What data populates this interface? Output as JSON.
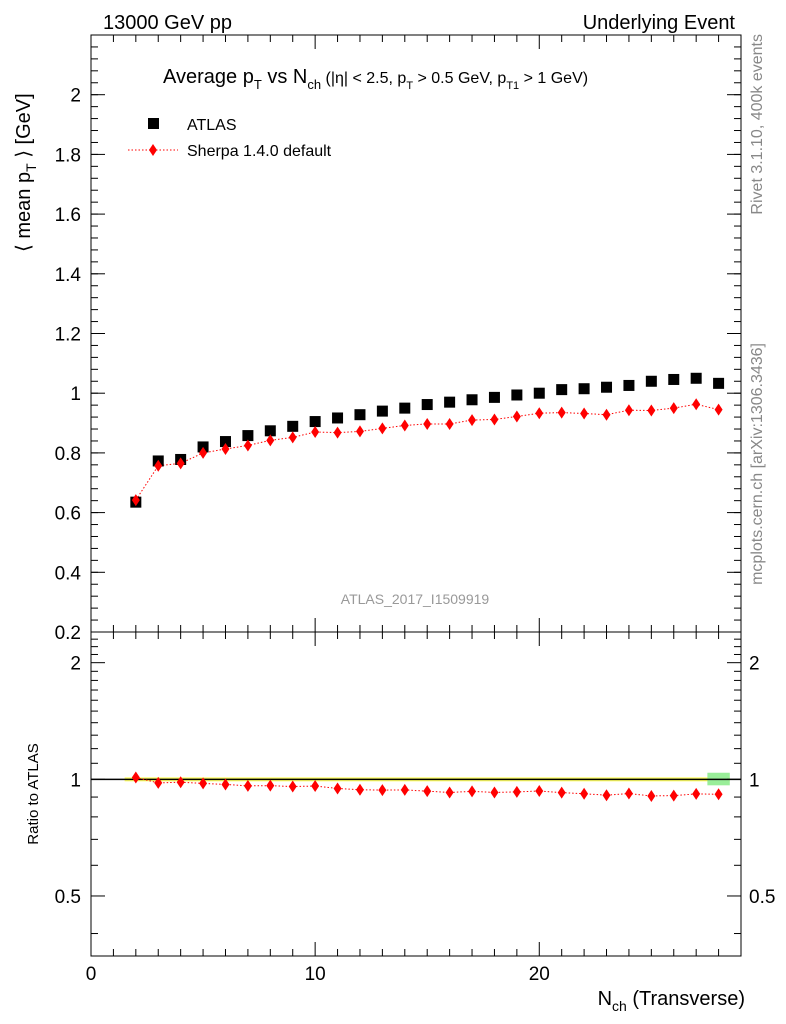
{
  "header": {
    "left": "13000 GeV pp",
    "right": "Underlying Event"
  },
  "side_labels": {
    "top": "Rivet 3.1.10,  400k events",
    "bottom": "mcplots.cern.ch [arXiv:1306.3436]"
  },
  "chart_data": [
    {
      "type": "scatter",
      "title": {
        "main": "Average p",
        "main_sub": "T",
        "vs": " vs N",
        "vs_sub": "ch",
        "cut_open": " (|η| < 2.5, p",
        "cut_sub1": "T",
        "cut_mid": " > 0.5 GeV, p",
        "cut_sub2": "T1",
        "cut_close": " > 1 GeV)"
      },
      "ylabel": "⟨ mean p",
      "ylabel_sub": "T",
      "ylabel_unit": " ⟩ [GeV]",
      "watermark": "ATLAS_2017_I1509919",
      "xlim": [
        0,
        29
      ],
      "ylim": [
        0.2,
        2.2
      ],
      "yticks": [
        0.2,
        0.4,
        0.6,
        0.8,
        1,
        1.2,
        1.4,
        1.6,
        1.8,
        2
      ],
      "ytick_labels": [
        "0.2",
        "0.4",
        "0.6",
        "0.8",
        "1",
        "1.2",
        "1.4",
        "1.6",
        "1.8",
        "2"
      ],
      "legend": {
        "position": "top-left",
        "entries": [
          "ATLAS",
          "Sherpa 1.4.0 default"
        ]
      },
      "x": [
        2,
        3,
        4,
        5,
        6,
        7,
        8,
        9,
        10,
        11,
        12,
        13,
        14,
        15,
        16,
        17,
        18,
        19,
        20,
        21,
        22,
        23,
        24,
        25,
        26,
        27,
        28
      ],
      "series": [
        {
          "name": "ATLAS",
          "marker": "square",
          "color": "#000000",
          "values": [
            0.635,
            0.773,
            0.778,
            0.82,
            0.838,
            0.858,
            0.874,
            0.889,
            0.905,
            0.917,
            0.928,
            0.94,
            0.95,
            0.962,
            0.97,
            0.978,
            0.986,
            0.994,
            1.0,
            1.012,
            1.015,
            1.02,
            1.026,
            1.04,
            1.046,
            1.05,
            1.033
          ]
        },
        {
          "name": "Sherpa 1.4.0 default",
          "marker": "diamond",
          "line": "dotted",
          "color": "#ff0000",
          "values": [
            0.642,
            0.757,
            0.765,
            0.8,
            0.813,
            0.825,
            0.842,
            0.852,
            0.87,
            0.868,
            0.872,
            0.882,
            0.892,
            0.897,
            0.897,
            0.91,
            0.912,
            0.922,
            0.933,
            0.935,
            0.932,
            0.928,
            0.943,
            0.942,
            0.95,
            0.963,
            0.945
          ]
        }
      ]
    },
    {
      "type": "scatter",
      "ylabel": "Ratio to ATLAS",
      "xlabel": "N",
      "xlabel_sub": "ch",
      "xlabel_rest": " (Transverse)",
      "xlim": [
        0,
        29
      ],
      "ylim": [
        0.35,
        2.4
      ],
      "yscale": "log",
      "yticks": [
        0.5,
        1,
        2
      ],
      "ytick_labels": [
        "0.5",
        "1",
        "2"
      ],
      "xticks": [
        0,
        10,
        20
      ],
      "xtick_labels": [
        "0",
        "10",
        "20"
      ],
      "x": [
        2,
        3,
        4,
        5,
        6,
        7,
        8,
        9,
        10,
        11,
        12,
        13,
        14,
        15,
        16,
        17,
        18,
        19,
        20,
        21,
        22,
        23,
        24,
        25,
        26,
        27,
        28
      ],
      "reference": 1,
      "band_colors": [
        "#ffff66",
        "#99ee99"
      ],
      "series": [
        {
          "name": "Sherpa 1.4.0 default",
          "marker": "diamond",
          "line": "dotted",
          "color": "#ff0000",
          "values": [
            1.011,
            0.979,
            0.983,
            0.976,
            0.97,
            0.962,
            0.963,
            0.958,
            0.961,
            0.947,
            0.94,
            0.938,
            0.939,
            0.932,
            0.925,
            0.931,
            0.925,
            0.928,
            0.933,
            0.924,
            0.918,
            0.91,
            0.919,
            0.906,
            0.908,
            0.917,
            0.915
          ]
        }
      ]
    }
  ]
}
